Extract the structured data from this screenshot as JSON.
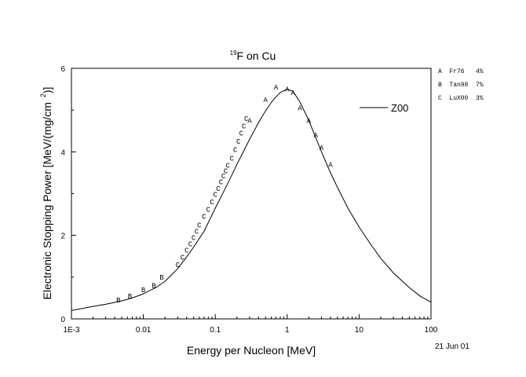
{
  "chart_data": {
    "type": "scatter",
    "title": {
      "superscript": "19",
      "main": "F on Cu"
    },
    "xlabel": "Energy per Nucleon [MeV]",
    "ylabel": {
      "main": "Electronic Stopping Power [MeV/(mg/cm",
      "superscript": "2",
      "close": ")]"
    },
    "x_scale": "log",
    "xlim": [
      0.001,
      100
    ],
    "ylim": [
      0,
      6
    ],
    "x_ticks": [
      {
        "value": 0.001,
        "label": "1E-3"
      },
      {
        "value": 0.01,
        "label": "0.01"
      },
      {
        "value": 0.1,
        "label": "0.1"
      },
      {
        "value": 1,
        "label": "1"
      },
      {
        "value": 10,
        "label": "10"
      },
      {
        "value": 100,
        "label": "100"
      }
    ],
    "y_ticks": [
      {
        "value": 0,
        "label": "0"
      },
      {
        "value": 2,
        "label": "2"
      },
      {
        "value": 4,
        "label": "4"
      },
      {
        "value": 6,
        "label": "6"
      }
    ],
    "date_label": "21 Jun 01",
    "line_series": {
      "name": "Z00",
      "points": [
        [
          0.001,
          0.2
        ],
        [
          0.002,
          0.3
        ],
        [
          0.003,
          0.35
        ],
        [
          0.005,
          0.43
        ],
        [
          0.007,
          0.5
        ],
        [
          0.01,
          0.6
        ],
        [
          0.015,
          0.75
        ],
        [
          0.02,
          0.9
        ],
        [
          0.03,
          1.2
        ],
        [
          0.04,
          1.48
        ],
        [
          0.05,
          1.72
        ],
        [
          0.07,
          2.1
        ],
        [
          0.1,
          2.65
        ],
        [
          0.15,
          3.25
        ],
        [
          0.2,
          3.7
        ],
        [
          0.3,
          4.3
        ],
        [
          0.4,
          4.7
        ],
        [
          0.5,
          4.98
        ],
        [
          0.6,
          5.18
        ],
        [
          0.7,
          5.32
        ],
        [
          0.8,
          5.42
        ],
        [
          1.0,
          5.5
        ],
        [
          1.2,
          5.45
        ],
        [
          1.5,
          5.2
        ],
        [
          2.0,
          4.75
        ],
        [
          3.0,
          4.0
        ],
        [
          4.0,
          3.5
        ],
        [
          5.0,
          3.15
        ],
        [
          7.0,
          2.65
        ],
        [
          10,
          2.2
        ],
        [
          15,
          1.75
        ],
        [
          20,
          1.45
        ],
        [
          30,
          1.1
        ],
        [
          50,
          0.75
        ],
        [
          70,
          0.55
        ],
        [
          100,
          0.4
        ]
      ]
    },
    "marker_series": [
      {
        "name": "Fr76",
        "marker": "A",
        "legend_label": "A  Fr76   4%",
        "points": [
          [
            0.3,
            4.75
          ],
          [
            0.5,
            5.25
          ],
          [
            0.7,
            5.55
          ],
          [
            1.0,
            5.5
          ],
          [
            1.2,
            5.42
          ],
          [
            1.5,
            5.05
          ],
          [
            2.0,
            4.75
          ],
          [
            2.5,
            4.4
          ],
          [
            3.0,
            4.1
          ],
          [
            4.0,
            3.7
          ]
        ]
      },
      {
        "name": "Tan98",
        "marker": "B",
        "legend_label": "B  Tan98  7%",
        "points": [
          [
            0.0045,
            0.45
          ],
          [
            0.0065,
            0.55
          ],
          [
            0.01,
            0.7
          ],
          [
            0.014,
            0.8
          ],
          [
            0.018,
            1.0
          ]
        ]
      },
      {
        "name": "LuX00",
        "marker": "C",
        "legend_label": "C  LuX00  3%",
        "points": [
          [
            0.03,
            1.3
          ],
          [
            0.035,
            1.48
          ],
          [
            0.04,
            1.65
          ],
          [
            0.045,
            1.8
          ],
          [
            0.05,
            1.95
          ],
          [
            0.055,
            2.1
          ],
          [
            0.06,
            2.25
          ],
          [
            0.07,
            2.45
          ],
          [
            0.08,
            2.62
          ],
          [
            0.09,
            2.8
          ],
          [
            0.1,
            2.98
          ],
          [
            0.11,
            3.12
          ],
          [
            0.12,
            3.28
          ],
          [
            0.13,
            3.42
          ],
          [
            0.14,
            3.55
          ],
          [
            0.15,
            3.68
          ],
          [
            0.17,
            3.85
          ],
          [
            0.19,
            4.05
          ],
          [
            0.21,
            4.25
          ],
          [
            0.23,
            4.45
          ],
          [
            0.25,
            4.62
          ],
          [
            0.27,
            4.8
          ]
        ]
      }
    ]
  }
}
